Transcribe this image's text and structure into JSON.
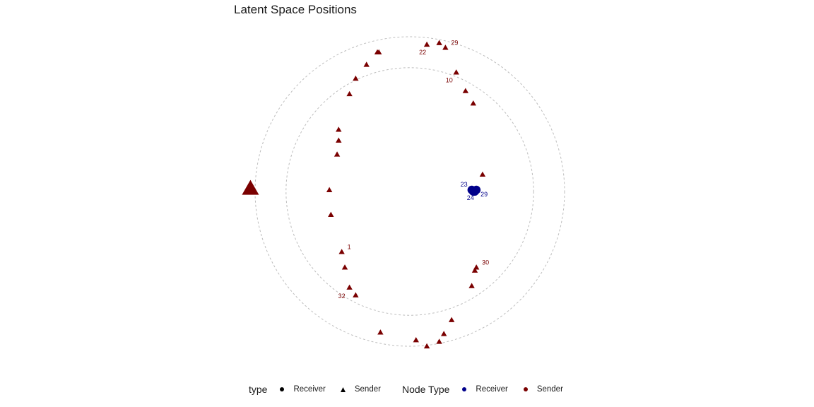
{
  "chart_data": {
    "type": "scatter",
    "title": "Latent Space Positions",
    "xlabel": "",
    "ylabel": "",
    "grid": false,
    "coord": "polar-like",
    "circles": [
      {
        "name": "inner",
        "radius": 0.8
      },
      {
        "name": "outer",
        "radius": 1.0
      }
    ],
    "series": [
      {
        "name": "Sender",
        "shape": "triangle",
        "color": "#7a0000",
        "points": [
          {
            "x": 0.11,
            "y": 0.95,
            "label": "22"
          },
          {
            "x": 0.19,
            "y": 0.96
          },
          {
            "x": 0.23,
            "y": 0.93,
            "label": "29"
          },
          {
            "x": 0.3,
            "y": 0.77,
            "label": "10"
          },
          {
            "x": 0.36,
            "y": 0.65
          },
          {
            "x": 0.41,
            "y": 0.57
          },
          {
            "x": 0.47,
            "y": 0.11
          },
          {
            "x": 0.43,
            "y": -0.49,
            "label": "30"
          },
          {
            "x": 0.42,
            "y": -0.51
          },
          {
            "x": 0.4,
            "y": -0.61
          },
          {
            "x": 0.27,
            "y": -0.83
          },
          {
            "x": 0.22,
            "y": -0.92
          },
          {
            "x": 0.19,
            "y": -0.97
          },
          {
            "x": 0.11,
            "y": -1.0
          },
          {
            "x": 0.04,
            "y": -0.96
          },
          {
            "x": -0.19,
            "y": -0.91
          },
          {
            "x": -0.35,
            "y": -0.67
          },
          {
            "x": -0.39,
            "y": -0.62,
            "label": "32"
          },
          {
            "x": -0.42,
            "y": -0.49
          },
          {
            "x": -0.44,
            "y": -0.39,
            "label": "1"
          },
          {
            "x": -0.51,
            "y": -0.15
          },
          {
            "x": -0.52,
            "y": 0.01
          },
          {
            "x": -0.47,
            "y": 0.24
          },
          {
            "x": -0.46,
            "y": 0.33
          },
          {
            "x": -0.46,
            "y": 0.4
          },
          {
            "x": -0.39,
            "y": 0.63
          },
          {
            "x": -0.35,
            "y": 0.73
          },
          {
            "x": -0.28,
            "y": 0.82
          },
          {
            "x": -0.21,
            "y": 0.9
          },
          {
            "x": -0.2,
            "y": 0.9
          }
        ]
      },
      {
        "name": "Receiver",
        "shape": "circle",
        "color": "#00008b",
        "points": [
          {
            "x": 0.4,
            "y": 0.01,
            "label": "23"
          },
          {
            "x": 0.41,
            "y": 0.0,
            "label": "24"
          },
          {
            "x": 0.42,
            "y": 0.0
          },
          {
            "x": 0.43,
            "y": 0.01,
            "label": "29"
          },
          {
            "x": 0.415,
            "y": 0.005
          }
        ]
      }
    ],
    "legends": [
      {
        "title": "type",
        "items": [
          {
            "label": "Receiver",
            "shape": "circle",
            "color": "#000000"
          },
          {
            "label": "Sender",
            "shape": "triangle",
            "color": "#000000"
          }
        ]
      },
      {
        "title": "Node Type",
        "items": [
          {
            "label": "Receiver",
            "shape": "circle",
            "color": "#00008b"
          },
          {
            "label": "Sender",
            "shape": "circle",
            "color": "#7a0000"
          }
        ]
      }
    ],
    "legend_position": "bottom"
  }
}
